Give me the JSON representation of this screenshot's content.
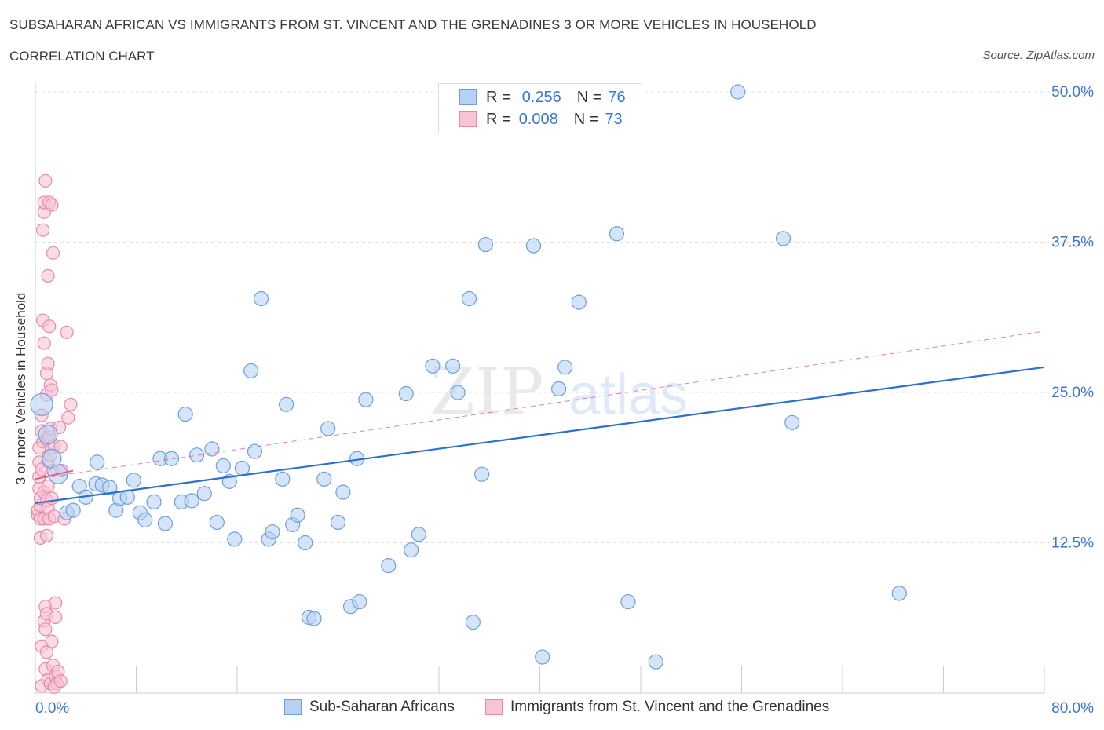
{
  "title": "SUBSAHARAN AFRICAN VS IMMIGRANTS FROM ST. VINCENT AND THE GRENADINES 3 OR MORE VEHICLES IN HOUSEHOLD",
  "subtitle": "CORRELATION CHART",
  "source": "Source: ZipAtlas.com",
  "watermark": {
    "zip": "ZIP",
    "atlas": "atlas"
  },
  "legend": {
    "r_label": "R =",
    "n_label": "N =",
    "series1": {
      "r": "0.256",
      "n": "76"
    },
    "series2": {
      "r": "0.008",
      "n": "73"
    }
  },
  "colors": {
    "blue_fill": "#b8d2f5",
    "blue_stroke": "#6e9fdc",
    "blue_line": "#2b6fd0",
    "pink_fill": "#f8c4d4",
    "pink_stroke": "#e88aa8",
    "pink_line": "#e0608c",
    "axis_text": "#3a78d0",
    "grid": "#e0e0e0"
  },
  "chart_data": {
    "type": "scatter",
    "title": "SUBSAHARAN AFRICAN VS IMMIGRANTS FROM ST. VINCENT AND THE GRENADINES 3 OR MORE VEHICLES IN HOUSEHOLD",
    "xlabel": "",
    "ylabel": "3 or more Vehicles in Household",
    "xlim": [
      0,
      80
    ],
    "ylim": [
      0,
      50
    ],
    "x_tick_labels": [
      "0.0%",
      "80.0%"
    ],
    "y_tick_values": [
      12.5,
      25.0,
      37.5,
      50.0
    ],
    "y_tick_labels": [
      "12.5%",
      "25.0%",
      "37.5%",
      "50.0%"
    ],
    "grid": true,
    "legend_position": "top-center",
    "series": [
      {
        "name": "Sub-Saharan Africans",
        "color": "#6e9fdc",
        "trend": {
          "x": [
            0,
            80
          ],
          "y": [
            15.8,
            27.1
          ]
        },
        "points": [
          [
            0.5,
            24.0
          ],
          [
            1.0,
            21.5
          ],
          [
            1.3,
            19.5
          ],
          [
            1.8,
            18.2
          ],
          [
            2.5,
            15.0
          ],
          [
            3.0,
            15.2
          ],
          [
            3.5,
            17.2
          ],
          [
            4.0,
            16.3
          ],
          [
            4.8,
            17.4
          ],
          [
            4.9,
            19.2
          ],
          [
            5.3,
            17.3
          ],
          [
            5.9,
            17.1
          ],
          [
            6.4,
            15.2
          ],
          [
            6.7,
            16.2
          ],
          [
            7.3,
            16.3
          ],
          [
            7.8,
            17.7
          ],
          [
            8.3,
            15.0
          ],
          [
            8.7,
            14.4
          ],
          [
            9.4,
            15.9
          ],
          [
            9.9,
            19.5
          ],
          [
            10.3,
            14.1
          ],
          [
            10.8,
            19.5
          ],
          [
            11.6,
            15.9
          ],
          [
            11.9,
            23.2
          ],
          [
            12.4,
            16.0
          ],
          [
            12.8,
            19.8
          ],
          [
            13.4,
            16.6
          ],
          [
            14.0,
            20.3
          ],
          [
            14.4,
            14.2
          ],
          [
            14.9,
            18.9
          ],
          [
            15.4,
            17.6
          ],
          [
            15.8,
            12.8
          ],
          [
            16.4,
            18.7
          ],
          [
            17.1,
            26.8
          ],
          [
            17.4,
            20.1
          ],
          [
            17.9,
            32.8
          ],
          [
            18.5,
            12.8
          ],
          [
            18.8,
            13.4
          ],
          [
            19.6,
            17.8
          ],
          [
            19.9,
            24.0
          ],
          [
            20.4,
            14.0
          ],
          [
            20.8,
            14.8
          ],
          [
            21.4,
            12.5
          ],
          [
            21.7,
            6.3
          ],
          [
            22.1,
            6.2
          ],
          [
            22.9,
            17.8
          ],
          [
            23.2,
            22.0
          ],
          [
            24.0,
            14.2
          ],
          [
            24.4,
            16.7
          ],
          [
            25.0,
            7.2
          ],
          [
            25.5,
            19.5
          ],
          [
            25.7,
            7.6
          ],
          [
            26.2,
            24.4
          ],
          [
            28.0,
            10.6
          ],
          [
            29.4,
            24.9
          ],
          [
            29.8,
            11.9
          ],
          [
            30.4,
            13.2
          ],
          [
            31.5,
            27.2
          ],
          [
            33.1,
            27.2
          ],
          [
            33.5,
            25.0
          ],
          [
            34.4,
            32.8
          ],
          [
            34.7,
            5.9
          ],
          [
            35.4,
            18.2
          ],
          [
            35.7,
            37.3
          ],
          [
            39.5,
            37.2
          ],
          [
            40.2,
            3.0
          ],
          [
            41.5,
            25.3
          ],
          [
            42.0,
            27.1
          ],
          [
            43.1,
            32.5
          ],
          [
            46.1,
            38.2
          ],
          [
            47.0,
            7.6
          ],
          [
            49.2,
            2.6
          ],
          [
            55.7,
            50.0
          ],
          [
            59.3,
            37.8
          ],
          [
            60.0,
            22.5
          ],
          [
            68.5,
            8.3
          ]
        ]
      },
      {
        "name": "Immigrants from St. Vincent and the Grenadines",
        "color": "#e88aa8",
        "trend": {
          "x": [
            0,
            3.0
          ],
          "y": [
            17.8,
            18.5
          ]
        },
        "trend_dashed": {
          "x": [
            0,
            80
          ],
          "y": [
            17.8,
            30.1
          ]
        },
        "points": [
          [
            0.2,
            14.8
          ],
          [
            0.2,
            15.2
          ],
          [
            0.3,
            17.0
          ],
          [
            0.3,
            18.0
          ],
          [
            0.3,
            19.2
          ],
          [
            0.3,
            20.4
          ],
          [
            0.4,
            12.9
          ],
          [
            0.4,
            14.5
          ],
          [
            0.4,
            15.6
          ],
          [
            0.4,
            16.2
          ],
          [
            0.5,
            18.6
          ],
          [
            0.5,
            21.8
          ],
          [
            0.5,
            23.1
          ],
          [
            0.5,
            3.9
          ],
          [
            0.5,
            0.6
          ],
          [
            0.6,
            38.5
          ],
          [
            0.6,
            31.0
          ],
          [
            0.6,
            20.9
          ],
          [
            0.7,
            40.0
          ],
          [
            0.7,
            40.8
          ],
          [
            0.7,
            29.1
          ],
          [
            0.7,
            16.7
          ],
          [
            0.7,
            14.5
          ],
          [
            0.7,
            6.0
          ],
          [
            0.8,
            42.6
          ],
          [
            0.8,
            7.2
          ],
          [
            0.8,
            5.3
          ],
          [
            0.8,
            2.0
          ],
          [
            0.9,
            26.6
          ],
          [
            0.9,
            24.8
          ],
          [
            0.9,
            21.1
          ],
          [
            0.9,
            16.0
          ],
          [
            0.9,
            13.1
          ],
          [
            0.9,
            6.6
          ],
          [
            0.9,
            3.4
          ],
          [
            1.0,
            34.7
          ],
          [
            1.0,
            27.4
          ],
          [
            1.0,
            19.3
          ],
          [
            1.0,
            17.2
          ],
          [
            1.0,
            15.4
          ],
          [
            1.0,
            1.1
          ],
          [
            1.1,
            40.8
          ],
          [
            1.1,
            30.5
          ],
          [
            1.1,
            21.3
          ],
          [
            1.1,
            14.5
          ],
          [
            1.2,
            25.6
          ],
          [
            1.2,
            22.0
          ],
          [
            1.2,
            19.8
          ],
          [
            1.2,
            0.8
          ],
          [
            1.3,
            40.6
          ],
          [
            1.3,
            25.2
          ],
          [
            1.3,
            20.4
          ],
          [
            1.3,
            16.2
          ],
          [
            1.3,
            4.3
          ],
          [
            1.4,
            36.6
          ],
          [
            1.4,
            18.5
          ],
          [
            1.4,
            2.3
          ],
          [
            1.5,
            20.6
          ],
          [
            1.5,
            14.7
          ],
          [
            1.6,
            7.5
          ],
          [
            1.6,
            6.3
          ],
          [
            1.6,
            1.4
          ],
          [
            1.7,
            0.8
          ],
          [
            1.8,
            1.8
          ],
          [
            1.9,
            22.1
          ],
          [
            2.0,
            20.5
          ],
          [
            2.1,
            18.5
          ],
          [
            2.3,
            14.5
          ],
          [
            2.5,
            30.0
          ],
          [
            2.6,
            22.9
          ],
          [
            2.8,
            24.0
          ],
          [
            1.5,
            0.5
          ],
          [
            2.0,
            1.0
          ]
        ]
      }
    ]
  }
}
